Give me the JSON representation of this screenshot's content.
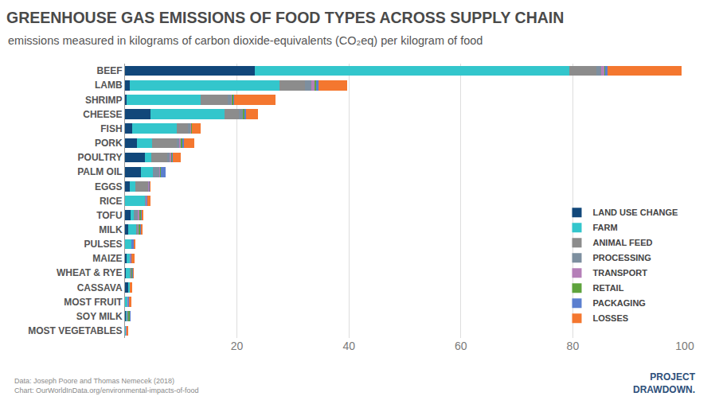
{
  "chart_data": {
    "type": "bar",
    "orientation": "horizontal",
    "stacked": true,
    "title": "GREENHOUSE GAS EMISSIONS OF FOOD TYPES ACROSS SUPPLY CHAIN",
    "subtitle": "emissions measured in kilograms of carbon dioxide-equivalents (CO₂eq) per kilogram of food",
    "notes": [
      "Data: Joseph Poore and Thomas Nemecek (2018)",
      "Chart: OurWorldInData.org/environmental-impacts-of-food"
    ],
    "logo": [
      "PROJECT",
      "DRAWDOWN."
    ],
    "categories": [
      "BEEF",
      "LAMB",
      "SHRIMP",
      "CHEESE",
      "FISH",
      "PORK",
      "POULTRY",
      "PALM OIL",
      "EGGS",
      "RICE",
      "TOFU",
      "MILK",
      "PULSES",
      "MAIZE",
      "WHEAT & RYE",
      "CASSAVA",
      "MOST FRUIT",
      "SOY MILK",
      "MOST VEGETABLES"
    ],
    "series": [
      {
        "name": "LAND USE CHANGE",
        "color": "#11477a",
        "values": [
          23.2,
          0.8,
          0.3,
          4.5,
          1.3,
          2.2,
          3.5,
          2.8,
          0.8,
          0,
          1.0,
          0.5,
          0,
          0.3,
          0.1,
          0.6,
          0,
          0.2,
          0
        ]
      },
      {
        "name": "FARM",
        "color": "#33c6cc",
        "values": [
          56.2,
          26.8,
          13.2,
          13.3,
          8.0,
          2.7,
          1.2,
          2.2,
          1.1,
          3.6,
          0.5,
          1.5,
          1.1,
          0.5,
          0.8,
          0.2,
          0.4,
          0.1,
          0.2
        ]
      },
      {
        "name": "ANIMAL FEED",
        "color": "#8c8c8c",
        "values": [
          4.8,
          4.6,
          4.9,
          2.6,
          2.0,
          4.4,
          2.9,
          0,
          2.2,
          0,
          0,
          0.2,
          0,
          0,
          0,
          0,
          0,
          0,
          0
        ]
      },
      {
        "name": "PROCESSING",
        "color": "#7d8f9f",
        "values": [
          0.9,
          1.1,
          0.5,
          0.6,
          0.4,
          0.4,
          0.4,
          1.1,
          0,
          0.1,
          0.8,
          0.1,
          0,
          0.1,
          0.2,
          0,
          0,
          0.2,
          0
        ]
      },
      {
        "name": "TRANSPORT",
        "color": "#b57fb8",
        "values": [
          0.5,
          0.6,
          0.2,
          0.1,
          0.1,
          0.3,
          0.2,
          0.2,
          0.1,
          0.1,
          0.2,
          0.1,
          0.1,
          0.1,
          0.1,
          0.1,
          0.2,
          0.1,
          0.1
        ]
      },
      {
        "name": "RETAIL",
        "color": "#5ea33c",
        "values": [
          0.2,
          0.3,
          0.2,
          0.3,
          0.1,
          0.2,
          0.2,
          0.1,
          0,
          0.1,
          0.3,
          0.3,
          0,
          0,
          0.1,
          0,
          0,
          0.3,
          0
        ]
      },
      {
        "name": "PACKAGING",
        "color": "#5b7fcf",
        "values": [
          0.4,
          0.3,
          0.2,
          0.2,
          0.1,
          0.3,
          0.2,
          0.8,
          0.2,
          0.1,
          0.2,
          0.1,
          0.4,
          0.1,
          0.1,
          0,
          0.1,
          0.1,
          0
        ]
      },
      {
        "name": "LOSSES",
        "color": "#f4772f",
        "values": [
          13.3,
          5.2,
          7.4,
          2.2,
          1.5,
          1.9,
          1.3,
          0,
          0.1,
          0.5,
          0.2,
          0.3,
          0.2,
          0.6,
          0.1,
          0.4,
          0.5,
          0,
          0.2
        ]
      }
    ],
    "xlim": [
      0,
      100
    ],
    "xticks": [
      20,
      40,
      60,
      80,
      100
    ],
    "grid": true,
    "legend": "lower right"
  }
}
